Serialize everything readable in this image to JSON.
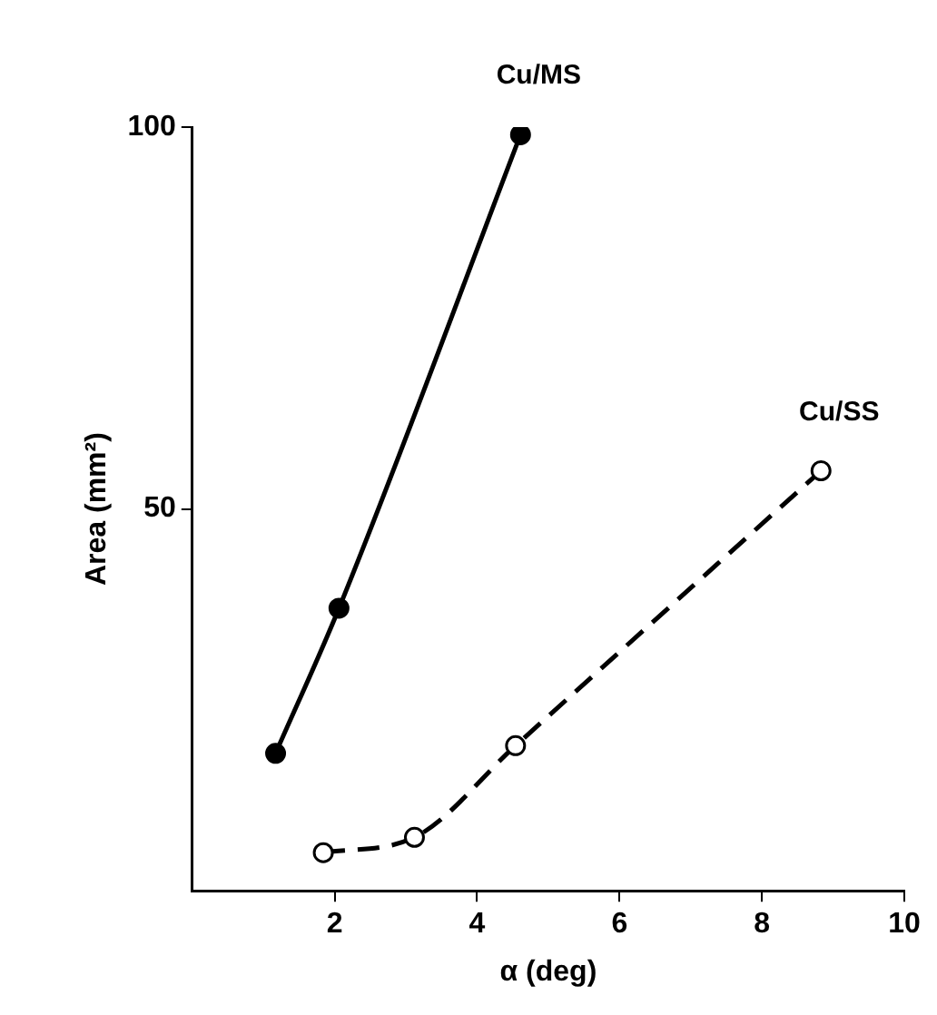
{
  "chart_data": {
    "type": "line",
    "xlabel": "α (deg)",
    "ylabel": "Area (mm²)",
    "xlim": [
      0,
      10
    ],
    "xticks": [
      2,
      4,
      6,
      8,
      10
    ],
    "ylim": [
      0,
      100
    ],
    "yticks": [
      50,
      100
    ],
    "grid": false,
    "legend": false,
    "marker": "circle",
    "series": [
      {
        "name": "Cu/MS",
        "color": "#000000",
        "line_style": "solid",
        "x": [
          1.17,
          2.06,
          4.61
        ],
        "values": [
          18,
          37,
          99
        ]
      },
      {
        "name": "Cu/SS",
        "color": "#000000",
        "line_style": "dashed",
        "x": [
          1.84,
          3.12,
          4.54,
          8.83
        ],
        "values": [
          5,
          7,
          19,
          55
        ]
      }
    ]
  }
}
